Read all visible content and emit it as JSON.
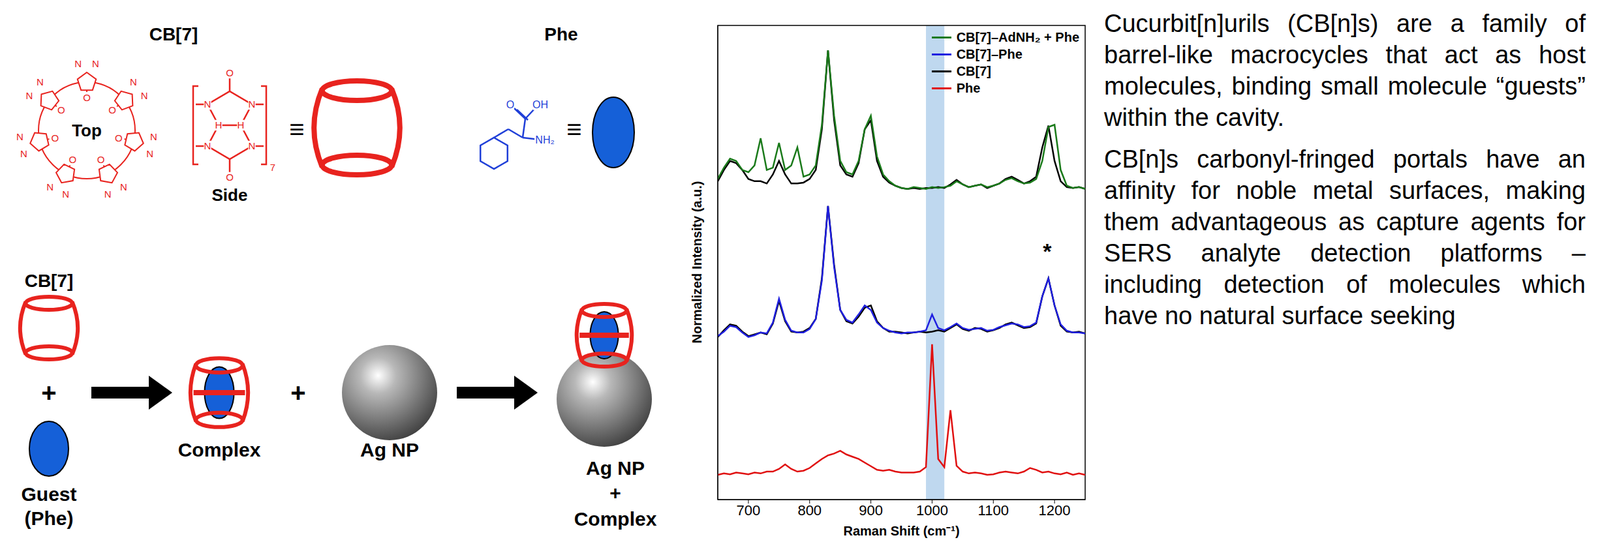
{
  "diagram": {
    "cb7_title": "CB[7]",
    "top_label": "Top",
    "side_label": "Side",
    "repeat": "7",
    "equiv": "≡",
    "top_unit_atoms": [
      "N",
      "N",
      "O"
    ],
    "side_atoms": [
      "N",
      "N",
      "N",
      "N",
      "O",
      "O",
      "H",
      "H"
    ],
    "phe_title": "Phe",
    "phe_atoms": [
      "O",
      "OH",
      "NH₂"
    ],
    "row": {
      "host": "CB[7]",
      "plus": "+",
      "guest": [
        "Guest",
        "(Phe)"
      ],
      "complex": "Complex",
      "np": "Ag NP",
      "product": [
        "Ag NP",
        "+",
        "Complex"
      ]
    }
  },
  "chart_data": {
    "type": "line",
    "x_label": "Raman Shift (cm⁻¹)",
    "y_label": "Normalized Intensity (a.u.)",
    "xlim": [
      650,
      1250
    ],
    "xticks": [
      700,
      800,
      900,
      1000,
      1100,
      1200
    ],
    "ylim": [
      0,
      10.5
    ],
    "tick_labels": "x",
    "grid": false,
    "legend": "upper right",
    "highlight": {
      "x": [
        990,
        1020
      ],
      "color": "#a9cbea"
    },
    "annotations": [
      {
        "text": "*",
        "x": 1188,
        "y": 5.5
      }
    ],
    "x": [
      650,
      660,
      670,
      680,
      690,
      700,
      710,
      720,
      730,
      740,
      750,
      760,
      770,
      780,
      790,
      800,
      810,
      820,
      830,
      840,
      850,
      860,
      870,
      880,
      890,
      900,
      910,
      920,
      930,
      940,
      950,
      960,
      970,
      980,
      990,
      1000,
      1010,
      1020,
      1030,
      1040,
      1050,
      1060,
      1070,
      1080,
      1090,
      1100,
      1110,
      1120,
      1130,
      1140,
      1150,
      1160,
      1170,
      1180,
      1190,
      1200,
      1210,
      1220,
      1230,
      1240,
      1250
    ],
    "series": [
      {
        "name": "CB[7]–AdNH₂ + Phe",
        "color": "#1a7a1a",
        "values": [
          7.1,
          7.35,
          7.55,
          7.5,
          7.3,
          7.25,
          7.4,
          8.0,
          7.3,
          7.35,
          7.9,
          7.3,
          7.4,
          7.8,
          7.15,
          7.2,
          7.4,
          8.3,
          9.95,
          8.5,
          7.5,
          7.25,
          7.2,
          7.5,
          8.2,
          8.5,
          7.6,
          7.2,
          7.05,
          6.95,
          6.9,
          6.88,
          6.92,
          6.9,
          6.88,
          6.92,
          6.9,
          6.92,
          6.95,
          7.05,
          6.98,
          6.92,
          6.95,
          6.98,
          6.92,
          6.95,
          7.0,
          7.08,
          7.12,
          7.05,
          7.0,
          7.02,
          7.1,
          7.5,
          8.25,
          8.3,
          7.3,
          6.95,
          6.9,
          6.92,
          6.88
        ]
      },
      {
        "name": "CB[7]–Phe",
        "color": "#1f1fe0",
        "values": [
          3.62,
          3.72,
          3.85,
          3.82,
          3.7,
          3.6,
          3.64,
          3.7,
          3.68,
          3.92,
          4.45,
          3.98,
          3.74,
          3.7,
          3.7,
          3.78,
          4.0,
          4.85,
          6.5,
          5.15,
          4.2,
          3.98,
          3.92,
          4.1,
          4.3,
          4.2,
          3.92,
          3.8,
          3.74,
          3.7,
          3.68,
          3.7,
          3.7,
          3.72,
          3.75,
          4.1,
          3.8,
          3.75,
          3.82,
          3.9,
          3.8,
          3.76,
          3.78,
          3.8,
          3.74,
          3.76,
          3.82,
          3.86,
          3.9,
          3.88,
          3.82,
          3.84,
          3.92,
          4.5,
          4.9,
          4.3,
          3.88,
          3.74,
          3.7,
          3.7,
          3.68
        ]
      },
      {
        "name": "CB[7]",
        "color": "#000000",
        "values": [
          7.05,
          7.3,
          7.5,
          7.45,
          7.3,
          7.1,
          7.05,
          7.05,
          7.0,
          7.2,
          7.5,
          7.2,
          7.0,
          7.0,
          7.02,
          7.1,
          7.3,
          8.2,
          9.95,
          8.4,
          7.4,
          7.2,
          7.15,
          7.45,
          8.2,
          8.4,
          7.5,
          7.15,
          7.02,
          6.95,
          6.9,
          6.88,
          6.9,
          6.88,
          6.9,
          6.9,
          6.92,
          6.9,
          6.98,
          7.08,
          6.98,
          6.92,
          6.95,
          6.98,
          6.9,
          6.95,
          7.0,
          7.1,
          7.15,
          7.08,
          7.0,
          7.05,
          7.15,
          7.8,
          8.28,
          7.5,
          7.05,
          6.92,
          6.9,
          6.92,
          6.88
        ]
      },
      {
        "name": "CB[7]",
        "color": "#000000",
        "values": [
          3.6,
          3.75,
          3.88,
          3.85,
          3.72,
          3.62,
          3.66,
          3.7,
          3.66,
          3.9,
          4.4,
          3.95,
          3.72,
          3.7,
          3.72,
          3.8,
          4.0,
          4.9,
          6.5,
          5.2,
          4.2,
          3.95,
          3.9,
          4.05,
          4.25,
          4.3,
          3.95,
          3.8,
          3.72,
          3.72,
          3.7,
          3.68,
          3.7,
          3.72,
          3.7,
          3.72,
          3.75,
          3.72,
          3.8,
          3.88,
          3.78,
          3.74,
          3.8,
          3.78,
          3.72,
          3.75,
          3.8,
          3.88,
          3.92,
          3.86,
          3.8,
          3.82,
          3.9,
          4.5,
          4.9,
          4.3,
          3.85,
          3.72,
          3.7,
          3.72,
          3.68
        ]
      },
      {
        "name": "Phe",
        "color": "#e01010",
        "values": [
          0.55,
          0.58,
          0.56,
          0.6,
          0.58,
          0.56,
          0.6,
          0.58,
          0.62,
          0.62,
          0.68,
          0.78,
          0.68,
          0.62,
          0.64,
          0.7,
          0.8,
          0.9,
          0.98,
          1.02,
          1.08,
          1.0,
          0.95,
          0.9,
          0.82,
          0.74,
          0.66,
          0.64,
          0.66,
          0.62,
          0.6,
          0.6,
          0.6,
          0.62,
          0.72,
          3.44,
          0.9,
          0.72,
          1.98,
          0.75,
          0.62,
          0.58,
          0.6,
          0.58,
          0.55,
          0.56,
          0.6,
          0.62,
          0.6,
          0.58,
          0.62,
          0.7,
          0.66,
          0.6,
          0.62,
          0.58,
          0.56,
          0.6,
          0.55,
          0.58,
          0.55
        ]
      }
    ]
  },
  "text": {
    "paragraphs": [
      "Cucurbit[n]urils (CB[n]s) are a family of barrel-like macrocycles that act as host molecules, binding small molecule “guests” within the cavity.",
      "CB[n]s carbonyl-fringed portals have an affinity for noble metal surfaces, making them advantageous as capture agents for SERS analyte detection platforms – including detection of molecules which have no natural surface seeking"
    ]
  }
}
